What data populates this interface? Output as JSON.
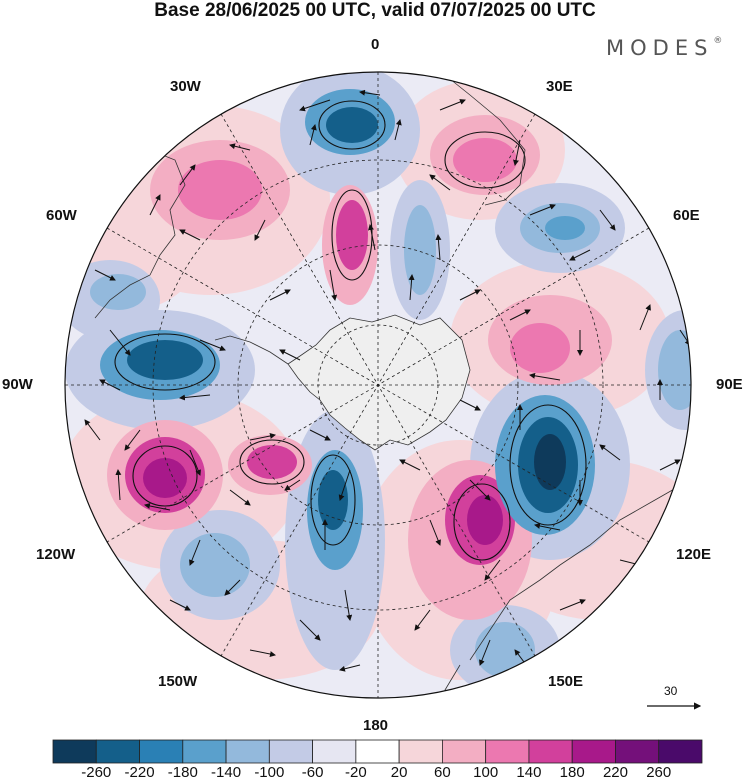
{
  "title": "Base 28/06/2025 00 UTC, valid 07/07/2025 00 UTC",
  "brand": "MODES",
  "brand_mark": "®",
  "longitudes": {
    "top": "0",
    "bottom": "180",
    "left": "90W",
    "right": "90E",
    "l30w": "30W",
    "l30e": "30E",
    "l60w": "60W",
    "l60e": "60E",
    "l120w": "120W",
    "l120e": "120E",
    "l150w": "150W",
    "l150e": "150E"
  },
  "vector_scale": "30",
  "colorbar": {
    "labels": [
      "-260",
      "-220",
      "-180",
      "-140",
      "-100",
      "-60",
      "-20",
      "20",
      "60",
      "100",
      "140",
      "180",
      "220",
      "260"
    ],
    "colors": [
      "#0e3a5b",
      "#145f8a",
      "#2a80b5",
      "#5aa0cc",
      "#93b9dc",
      "#c3cbe6",
      "#e6e6f2",
      "#ffffff",
      "#f6d6da",
      "#f3aec3",
      "#ec78b0",
      "#d2409c",
      "#a8198a",
      "#74107a",
      "#4a0a6a"
    ]
  },
  "map_colors": {
    "ocean_background": "#ebebf5",
    "antarctica": "#efefef",
    "coastline": "#333333"
  }
}
